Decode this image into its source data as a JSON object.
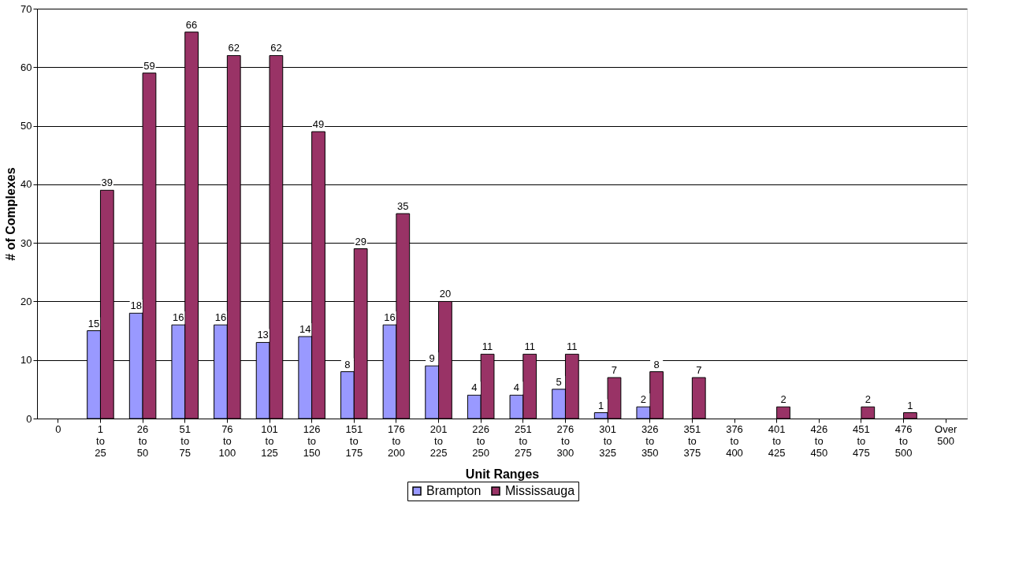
{
  "chart_data": {
    "type": "bar",
    "xlabel": "Unit Ranges",
    "ylabel": "# of Complexes",
    "categories": [
      "0",
      "1 to 25",
      "26 to 50",
      "51 to 75",
      "76 to 100",
      "101 to 125",
      "126 to 150",
      "151 to 175",
      "176 to 200",
      "201 to 225",
      "226 to 250",
      "251 to 275",
      "276 to 300",
      "301 to 325",
      "326 to 350",
      "351 to 375",
      "376 to 400",
      "401 to 425",
      "426 to 450",
      "451 to 475",
      "476 to 500",
      "Over 500"
    ],
    "series": [
      {
        "name": "Brampton",
        "color": "#9999ff",
        "values": [
          null,
          15,
          18,
          16,
          16,
          13,
          14,
          8,
          16,
          9,
          4,
          4,
          5,
          1,
          2,
          null,
          null,
          null,
          null,
          null,
          null,
          null
        ]
      },
      {
        "name": "Mississauga",
        "color": "#993366",
        "values": [
          null,
          39,
          59,
          66,
          62,
          62,
          49,
          29,
          35,
          20,
          11,
          11,
          11,
          7,
          8,
          7,
          null,
          2,
          null,
          2,
          1,
          null
        ]
      }
    ],
    "ylim": [
      0,
      70
    ],
    "yticks": [
      0,
      10,
      20,
      30,
      40,
      50,
      60,
      70
    ],
    "grid": "y",
    "legend": "bottom",
    "data_labels": true
  }
}
